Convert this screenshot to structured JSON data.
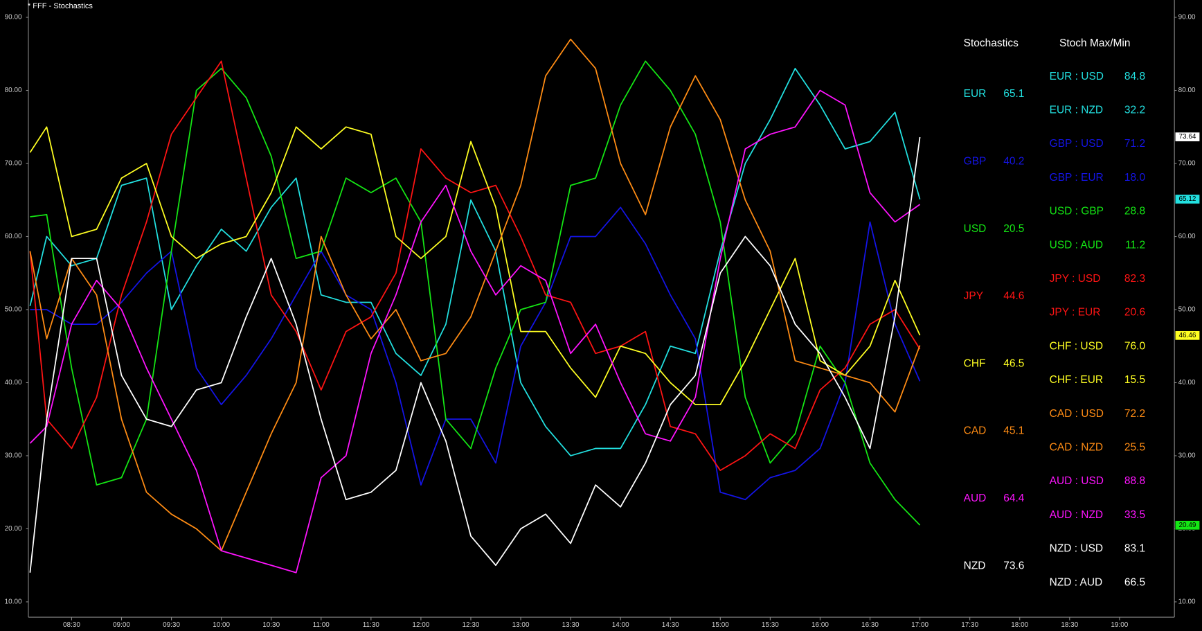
{
  "chart_data": {
    "type": "line",
    "title": "* FFF - Stochastics",
    "x": [
      "08:05",
      "08:15",
      "08:30",
      "08:45",
      "09:00",
      "09:15",
      "09:30",
      "09:45",
      "10:00",
      "10:15",
      "10:30",
      "10:45",
      "11:00",
      "11:15",
      "11:30",
      "11:45",
      "12:00",
      "12:15",
      "12:30",
      "12:45",
      "13:00",
      "13:15",
      "13:30",
      "13:45",
      "14:00",
      "14:15",
      "14:30",
      "14:45",
      "15:00",
      "15:15",
      "15:30",
      "15:45",
      "16:00",
      "16:15",
      "16:30",
      "16:45",
      "17:00"
    ],
    "xlim": [
      "08:04",
      "19:33"
    ],
    "xticks": [
      "08:30",
      "09:00",
      "09:30",
      "10:00",
      "10:30",
      "11:00",
      "11:30",
      "12:00",
      "12:30",
      "13:00",
      "13:30",
      "14:00",
      "14:30",
      "15:00",
      "15:30",
      "16:00",
      "16:30",
      "17:00",
      "17:30",
      "18:00",
      "18:30",
      "19:00"
    ],
    "ylim": [
      7.9,
      90.8
    ],
    "yticks": [
      {
        "value": 10,
        "label": "10.00"
      },
      {
        "value": 20,
        "label": "20.00"
      },
      {
        "value": 30,
        "label": "30.00"
      },
      {
        "value": 40,
        "label": "40.00"
      },
      {
        "value": 50,
        "label": "50.00"
      },
      {
        "value": 60,
        "label": "60.00"
      },
      {
        "value": 70,
        "label": "70.00"
      },
      {
        "value": 80,
        "label": "80.00"
      },
      {
        "value": 90,
        "label": "90.00"
      }
    ],
    "series": [
      {
        "name": "EUR",
        "color": "#22e0e0",
        "values": [
          50.5,
          60,
          56,
          57,
          67,
          68,
          50,
          56,
          61,
          58,
          64,
          68,
          52,
          51,
          51,
          44,
          41,
          48,
          65,
          58,
          40,
          34,
          30,
          31,
          31,
          37,
          45,
          44,
          58,
          70,
          76,
          83,
          78,
          72,
          73,
          77,
          65.1
        ]
      },
      {
        "name": "GBP",
        "color": "#1414e6",
        "values": [
          50,
          50,
          48,
          48,
          51,
          55,
          58,
          42,
          37,
          41,
          46,
          52,
          58,
          52,
          50,
          40,
          26,
          35,
          35,
          29,
          45,
          51,
          60,
          60,
          64,
          59,
          52,
          46,
          25,
          24,
          27,
          28,
          31,
          40,
          62,
          48,
          40.2
        ]
      },
      {
        "name": "USD",
        "color": "#14e614",
        "values": [
          62.7,
          63,
          42,
          26,
          27,
          35,
          58,
          80,
          83,
          79,
          71,
          57,
          58,
          68,
          66,
          68,
          62,
          35,
          31,
          42,
          50,
          51,
          67,
          68,
          78,
          84,
          80,
          74,
          62,
          38,
          29,
          33,
          45,
          40,
          29,
          24,
          20.5
        ]
      },
      {
        "name": "JPY",
        "color": "#ff1414",
        "values": [
          58,
          35,
          31,
          38,
          52,
          62,
          74,
          79,
          84,
          68,
          52,
          47,
          39,
          47,
          49,
          55,
          72,
          68,
          66,
          67,
          60,
          52,
          51,
          44,
          45,
          47,
          34,
          33,
          28,
          30,
          33,
          31,
          39,
          42,
          48,
          50,
          44.6
        ]
      },
      {
        "name": "CHF",
        "color": "#ffff22",
        "values": [
          71.5,
          75,
          60,
          61,
          68,
          70,
          60,
          57,
          59,
          60,
          66,
          75,
          72,
          75,
          74,
          60,
          57,
          60,
          73,
          64,
          47,
          47,
          42,
          38,
          45,
          44,
          40,
          37,
          37,
          43,
          50,
          57,
          43,
          41,
          45,
          54,
          46.5
        ]
      },
      {
        "name": "CAD",
        "color": "#ff8c14",
        "values": [
          58,
          46,
          57,
          52,
          35,
          25,
          22,
          20,
          17,
          25,
          33,
          40,
          60,
          52,
          46,
          50,
          43,
          44,
          49,
          58,
          67,
          82,
          87,
          83,
          70,
          63,
          75,
          82,
          76,
          65,
          58,
          43,
          42,
          41,
          40,
          36,
          45.1
        ]
      },
      {
        "name": "AUD",
        "color": "#ff14ff",
        "values": [
          31.7,
          34,
          48,
          54,
          50,
          42,
          35,
          28,
          17,
          16,
          15,
          14,
          27,
          30,
          44,
          52,
          62,
          67,
          58,
          52,
          56,
          54,
          44,
          48,
          40,
          33,
          32,
          38,
          57,
          72,
          74,
          75,
          80,
          78,
          66,
          62,
          64.4
        ]
      },
      {
        "name": "NZD",
        "color": "#ffffff",
        "values": [
          14,
          35,
          57,
          57,
          41,
          35,
          34,
          39,
          40,
          49,
          57,
          48,
          35,
          24,
          25,
          28,
          40,
          32,
          19,
          15,
          20,
          22,
          18,
          26,
          23,
          29,
          37,
          41,
          55,
          60,
          56,
          48,
          44,
          38,
          31,
          49,
          73.6
        ]
      }
    ],
    "price_labels": [
      {
        "value": 73.64,
        "label": "73.64",
        "color": "#ffffff"
      },
      {
        "value": 65.12,
        "label": "65.12",
        "color": "#22e0e0"
      },
      {
        "value": 46.46,
        "label": "46.46",
        "color": "#ffff22"
      },
      {
        "value": 20.49,
        "label": "20.49",
        "color": "#14e614"
      }
    ]
  },
  "panel": {
    "title": "Stochastics",
    "pairs_title": "Stoch Max/Min",
    "currencies": [
      {
        "name": "EUR",
        "value": "65.1",
        "color": "#22e0e0"
      },
      {
        "name": "GBP",
        "value": "40.2",
        "color": "#1414e6"
      },
      {
        "name": "USD",
        "value": "20.5",
        "color": "#14e614"
      },
      {
        "name": "JPY",
        "value": "44.6",
        "color": "#ff1414"
      },
      {
        "name": "CHF",
        "value": "46.5",
        "color": "#ffff22"
      },
      {
        "name": "CAD",
        "value": "45.1",
        "color": "#ff8c14"
      },
      {
        "name": "AUD",
        "value": "64.4",
        "color": "#ff14ff"
      },
      {
        "name": "NZD",
        "value": "73.6",
        "color": "#ffffff"
      }
    ],
    "pairs": [
      {
        "name": "EUR : USD",
        "value": "84.8",
        "color": "#22e0e0"
      },
      {
        "name": "EUR : NZD",
        "value": "32.2",
        "color": "#22e0e0"
      },
      {
        "name": "GBP : USD",
        "value": "71.2",
        "color": "#1414e6"
      },
      {
        "name": "GBP : EUR",
        "value": "18.0",
        "color": "#1414e6"
      },
      {
        "name": "USD : GBP",
        "value": "28.8",
        "color": "#14e614"
      },
      {
        "name": "USD : AUD",
        "value": "11.2",
        "color": "#14e614"
      },
      {
        "name": "JPY : USD",
        "value": "82.3",
        "color": "#ff1414"
      },
      {
        "name": "JPY : EUR",
        "value": "20.6",
        "color": "#ff1414"
      },
      {
        "name": "CHF : USD",
        "value": "76.0",
        "color": "#ffff22"
      },
      {
        "name": "CHF : EUR",
        "value": "15.5",
        "color": "#ffff22"
      },
      {
        "name": "CAD : USD",
        "value": "72.2",
        "color": "#ff8c14"
      },
      {
        "name": "CAD : NZD",
        "value": "25.5",
        "color": "#ff8c14"
      },
      {
        "name": "AUD : USD",
        "value": "88.8",
        "color": "#ff14ff"
      },
      {
        "name": "AUD : NZD",
        "value": "33.5",
        "color": "#ff14ff"
      },
      {
        "name": "NZD : USD",
        "value": "83.1",
        "color": "#ffffff"
      },
      {
        "name": "NZD : AUD",
        "value": "66.5",
        "color": "#ffffff"
      }
    ]
  }
}
